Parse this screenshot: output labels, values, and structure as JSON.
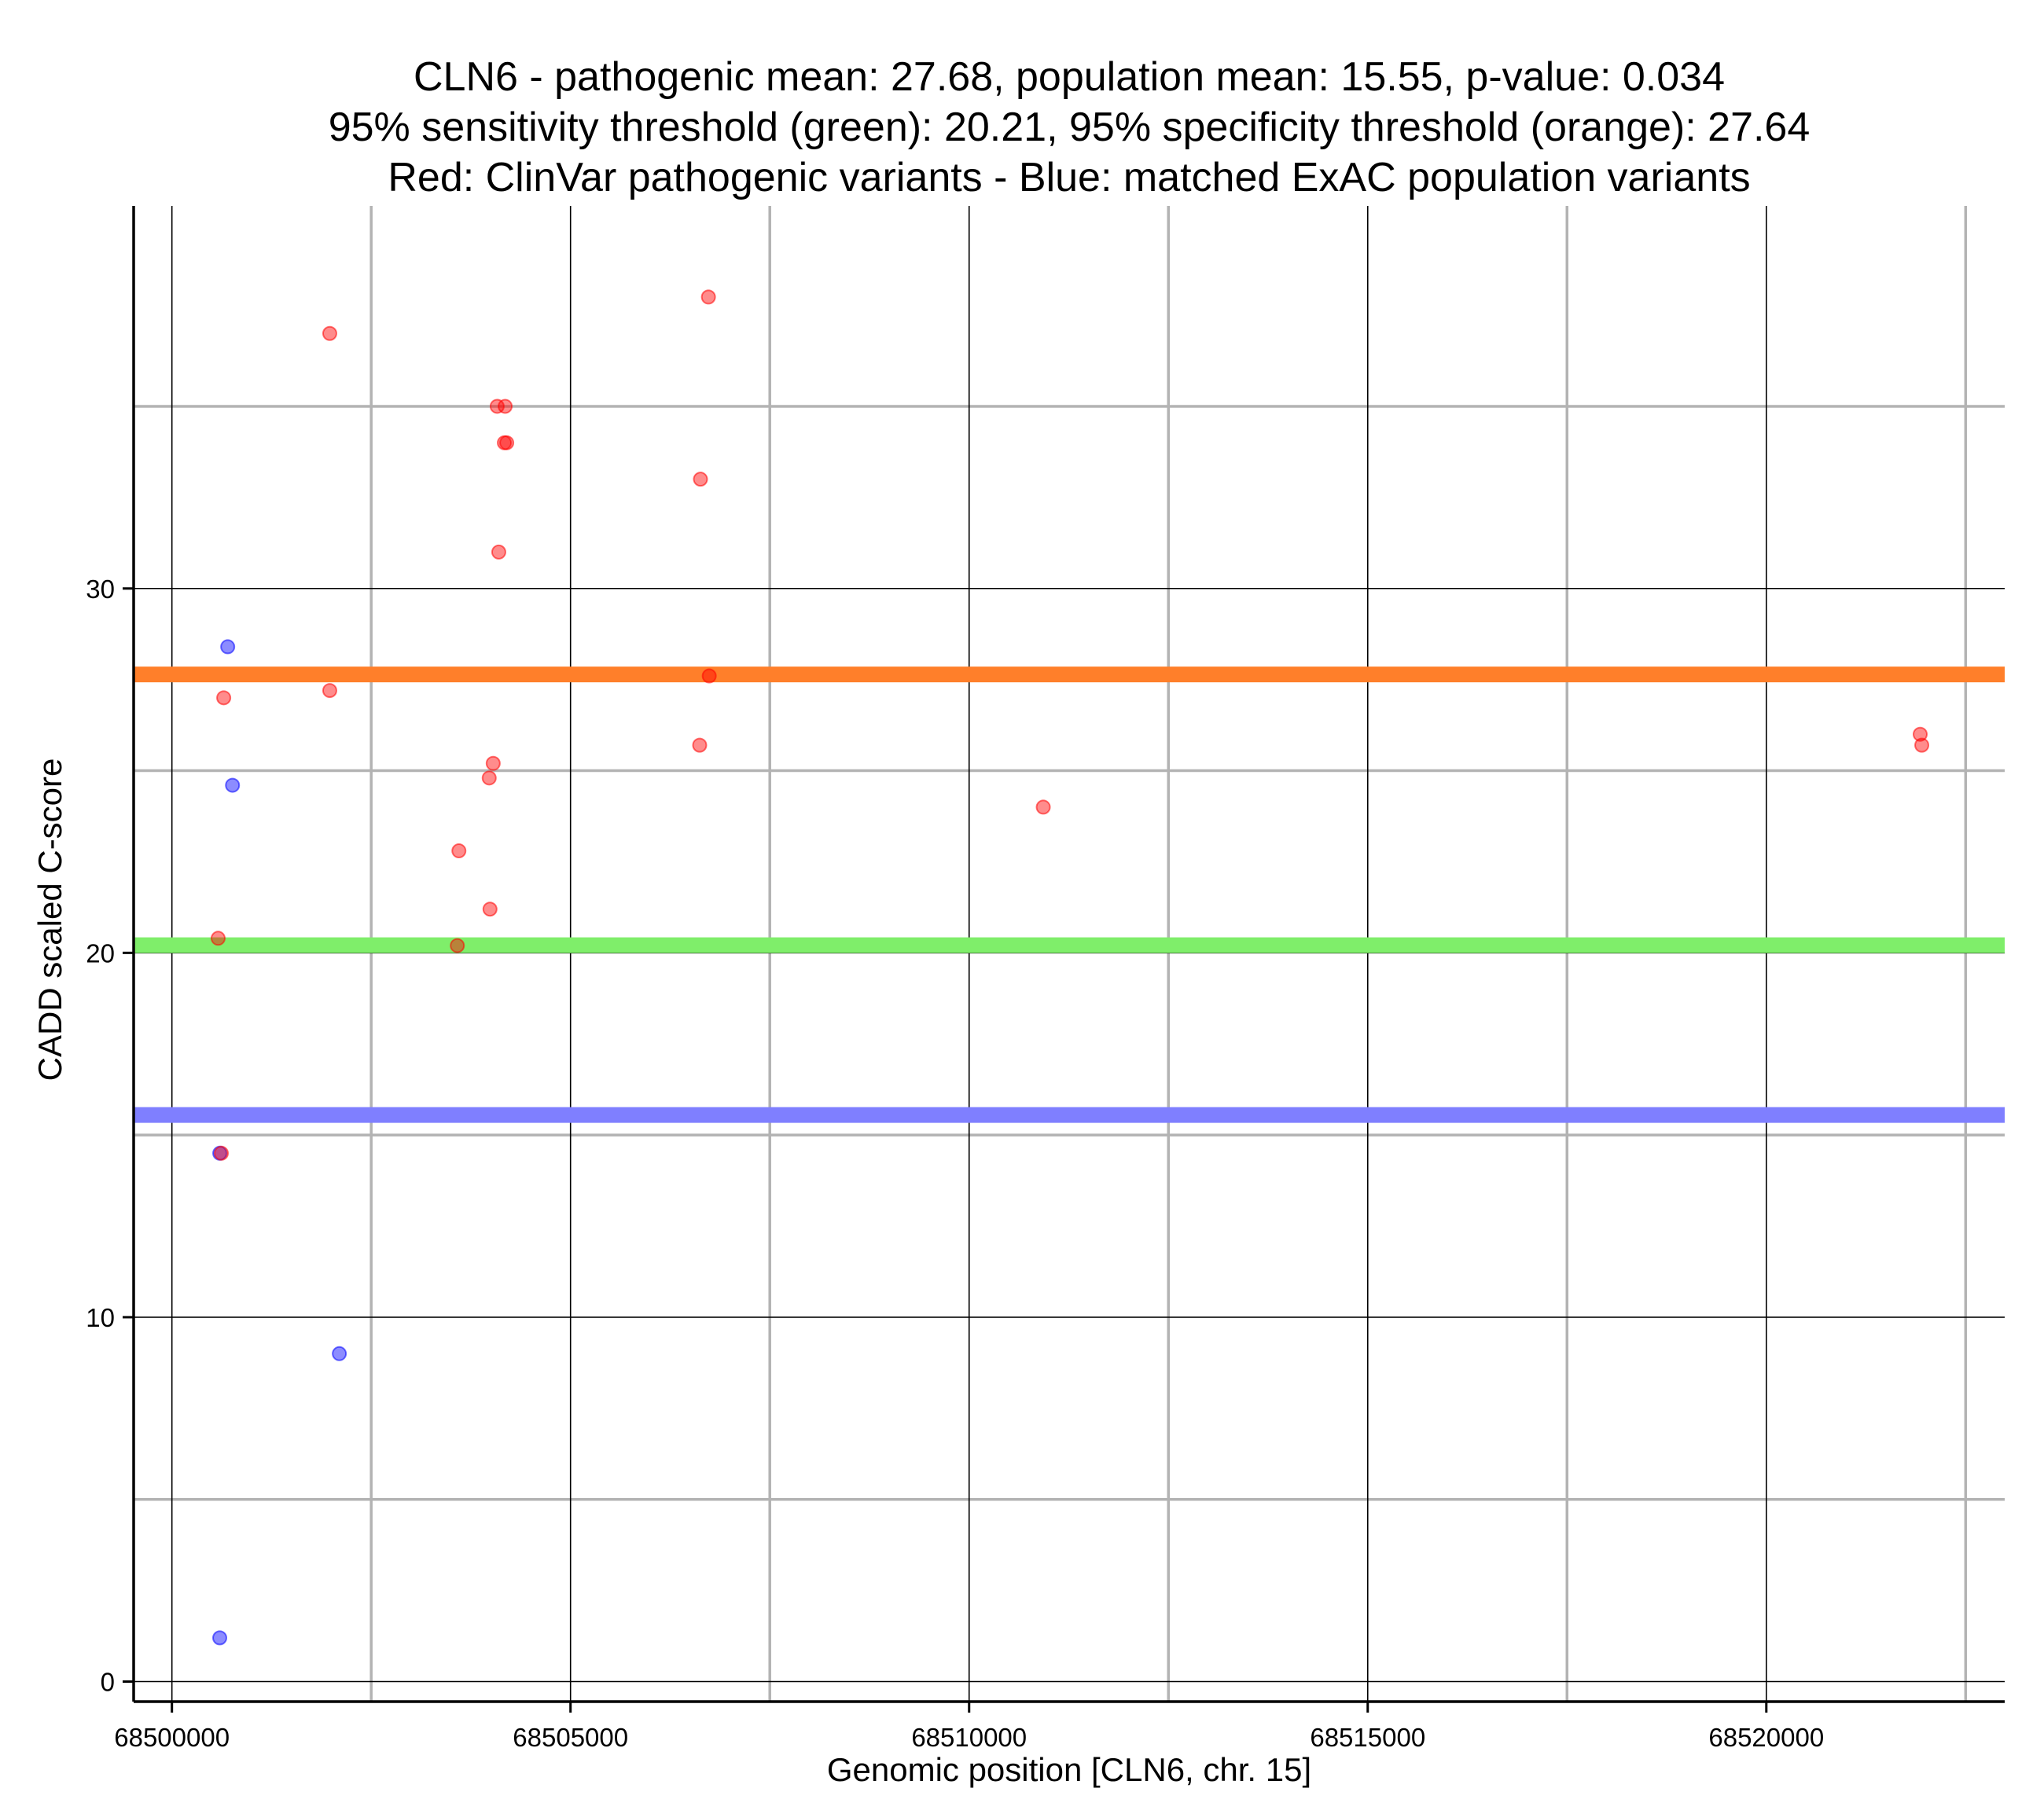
{
  "chart_data": {
    "type": "scatter",
    "title_lines": [
      "CLN6 - pathogenic mean: 27.68, population mean: 15.55, p-value: 0.034",
      "95% sensitivity threshold (green): 20.21, 95% specificity threshold (orange): 27.64",
      "Red: ClinVar pathogenic variants - Blue: matched ExAC population variants"
    ],
    "xlabel": "Genomic position [CLN6, chr. 15]",
    "ylabel": "CADD scaled C-score",
    "xlim": [
      68499520,
      68522990
    ],
    "ylim": [
      -0.55,
      40.5
    ],
    "x_ticks": [
      68500000,
      68505000,
      68510000,
      68515000,
      68520000
    ],
    "x_tick_labels": [
      "68500000",
      "68505000",
      "68510000",
      "68515000",
      "68520000"
    ],
    "x_minor_grid": [
      68502500,
      68507500,
      68512500,
      68517500,
      68522500
    ],
    "y_ticks": [
      0,
      10,
      20,
      30
    ],
    "y_tick_labels": [
      "0",
      "10",
      "20",
      "30"
    ],
    "y_minor_grid": [
      5,
      15,
      25,
      35
    ],
    "grid": true,
    "colors": {
      "pathogenic": "#ff0000",
      "population": "#0000ff",
      "orange_line": "#ff7f2a",
      "green_line": "#7fee6a",
      "blue_line": "#7f7fff",
      "major_grid": "#000000",
      "minor_grid": "#b3b3b3"
    },
    "hlines": [
      {
        "label": "95% specificity threshold (orange)",
        "y": 27.64,
        "color": "#ff7f2a"
      },
      {
        "label": "95% sensitivity threshold (green)",
        "y": 20.21,
        "color": "#7fee6a"
      },
      {
        "label": "population mean",
        "y": 15.55,
        "color": "#7f7fff"
      }
    ],
    "series": [
      {
        "name": "ClinVar pathogenic variants",
        "color": "#ff0000",
        "points": [
          {
            "x": 68501980,
            "y": 37.0
          },
          {
            "x": 68506730,
            "y": 38.0
          },
          {
            "x": 68504080,
            "y": 35.0
          },
          {
            "x": 68504180,
            "y": 35.0
          },
          {
            "x": 68504170,
            "y": 34.0
          },
          {
            "x": 68504200,
            "y": 34.0
          },
          {
            "x": 68506630,
            "y": 33.0
          },
          {
            "x": 68504100,
            "y": 31.0
          },
          {
            "x": 68500650,
            "y": 27.0
          },
          {
            "x": 68501980,
            "y": 27.2
          },
          {
            "x": 68506740,
            "y": 27.6
          },
          {
            "x": 68506620,
            "y": 25.7
          },
          {
            "x": 68504030,
            "y": 25.2
          },
          {
            "x": 68503980,
            "y": 24.8
          },
          {
            "x": 68510930,
            "y": 24.0
          },
          {
            "x": 68503600,
            "y": 22.8
          },
          {
            "x": 68503990,
            "y": 21.2
          },
          {
            "x": 68500580,
            "y": 20.4
          },
          {
            "x": 68503580,
            "y": 20.2
          },
          {
            "x": 68500620,
            "y": 14.5
          },
          {
            "x": 68521930,
            "y": 26.0
          },
          {
            "x": 68521950,
            "y": 25.7
          }
        ]
      },
      {
        "name": "matched ExAC population variants",
        "color": "#0000ff",
        "points": [
          {
            "x": 68500700,
            "y": 28.4
          },
          {
            "x": 68500760,
            "y": 24.6
          },
          {
            "x": 68500600,
            "y": 14.5
          },
          {
            "x": 68502100,
            "y": 9.0
          },
          {
            "x": 68500600,
            "y": 1.2
          }
        ]
      }
    ]
  }
}
